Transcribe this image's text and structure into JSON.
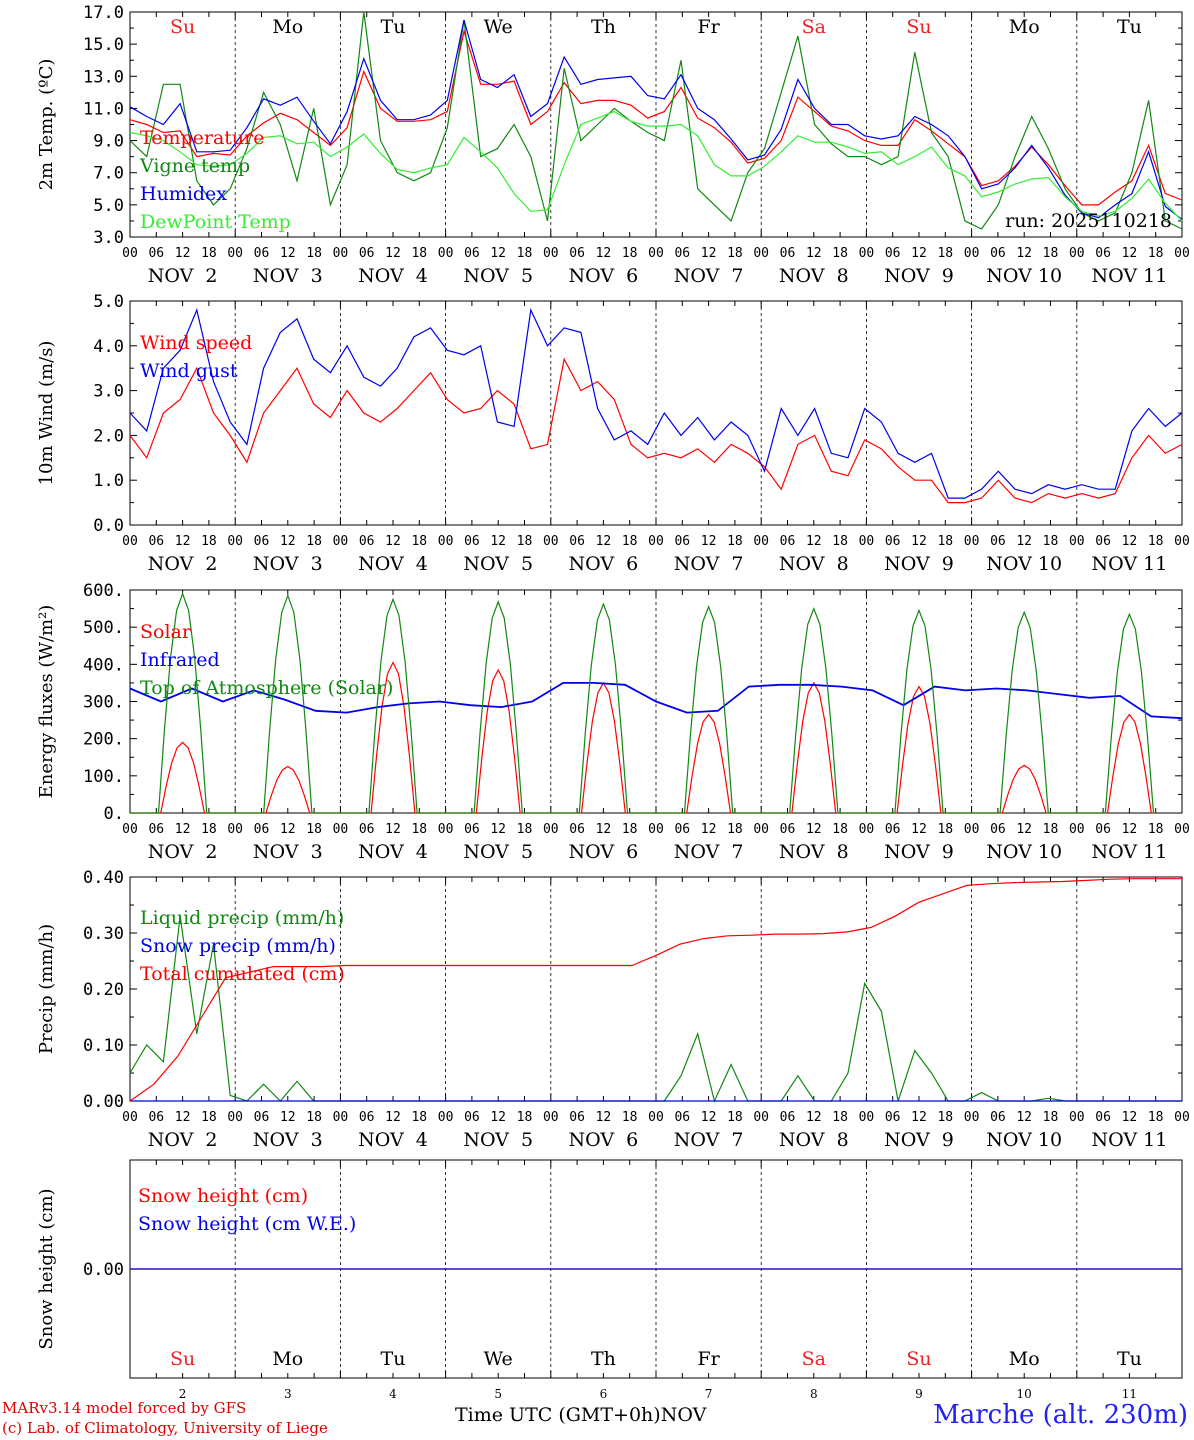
{
  "chart_data": [
    {
      "type": "line",
      "title": "",
      "ylabel": "2m Temp. (ºC)",
      "ylim": [
        3.0,
        17.0
      ],
      "yticks": [
        "3.0",
        "5.0",
        "7.0",
        "9.0",
        "11.0",
        "13.0",
        "15.0",
        "17.0"
      ],
      "day_labels_top": [
        "Su",
        "Mo",
        "Tu",
        "We",
        "Th",
        "Fr",
        "Sa",
        "Su",
        "Mo",
        "Tu"
      ],
      "annotation": "run: 2025110218",
      "legend": [
        "Temperature",
        "Vigne temp",
        "Humidex",
        "DewPoint Temp"
      ],
      "series": [
        {
          "name": "Temperature",
          "color": "#ff0000",
          "values": [
            10.3,
            10.0,
            9.5,
            9.6,
            8.0,
            8.2,
            8.1,
            9.3,
            10.1,
            10.7,
            10.3,
            9.5,
            8.7,
            9.8,
            13.3,
            11.0,
            10.2,
            10.2,
            10.3,
            10.8,
            15.8,
            12.5,
            12.5,
            12.7,
            10.0,
            10.8,
            12.6,
            11.3,
            11.5,
            11.5,
            11.2,
            10.4,
            10.8,
            12.3,
            10.4,
            9.8,
            8.9,
            7.6,
            7.9,
            9.0,
            11.7,
            10.8,
            9.9,
            9.6,
            9.0,
            8.7,
            8.7,
            10.3,
            9.6,
            8.8,
            8.0,
            6.2,
            6.5,
            7.4,
            8.6,
            7.5,
            6.2,
            5.0,
            5.0,
            5.8,
            6.5,
            8.7,
            5.7,
            5.3
          ]
        },
        {
          "name": "Vigne temp",
          "color": "#118811",
          "values": [
            9.0,
            8.0,
            12.5,
            12.5,
            6.5,
            5.0,
            6.0,
            8.5,
            12.0,
            10.0,
            6.5,
            11.0,
            5.0,
            7.5,
            17.0,
            9.0,
            7.0,
            6.5,
            7.0,
            9.8,
            16.5,
            8.0,
            8.5,
            10.0,
            8.0,
            4.0,
            13.5,
            9.0,
            10.0,
            11.0,
            10.2,
            9.5,
            9.0,
            14.0,
            6.0,
            5.0,
            4.0,
            7.0,
            8.5,
            12.0,
            15.5,
            10.0,
            8.8,
            8.0,
            8.0,
            7.5,
            8.0,
            14.5,
            9.5,
            8.0,
            4.0,
            3.5,
            5.0,
            8.0,
            10.5,
            8.5,
            6.0,
            4.5,
            4.0,
            4.5,
            7.0,
            11.5,
            4.0,
            3.5
          ]
        },
        {
          "name": "Humidex",
          "color": "#0000ee",
          "values": [
            11.1,
            10.5,
            10.0,
            11.3,
            8.3,
            8.3,
            8.4,
            9.8,
            11.6,
            11.2,
            11.7,
            10.2,
            8.8,
            10.8,
            14.1,
            11.5,
            10.3,
            10.3,
            10.6,
            11.5,
            16.5,
            12.8,
            12.3,
            13.1,
            10.5,
            11.3,
            14.2,
            12.5,
            12.8,
            12.9,
            13.0,
            11.8,
            11.6,
            13.1,
            11.0,
            10.3,
            9.1,
            7.8,
            8.1,
            9.7,
            12.8,
            11.0,
            10.0,
            10.0,
            9.3,
            9.1,
            9.3,
            10.5,
            10.0,
            9.3,
            8.0,
            6.0,
            6.3,
            7.3,
            8.7,
            7.3,
            5.6,
            4.5,
            4.2,
            5.0,
            5.7,
            8.3,
            4.9,
            4.1
          ]
        },
        {
          "name": "DewPoint Temp",
          "color": "#33ee33",
          "values": [
            9.5,
            9.3,
            9.0,
            8.3,
            7.5,
            7.4,
            7.5,
            8.2,
            9.2,
            9.3,
            8.8,
            8.9,
            8.0,
            8.6,
            9.4,
            8.2,
            7.2,
            7.0,
            7.3,
            7.5,
            9.2,
            8.3,
            7.3,
            5.7,
            4.6,
            4.7,
            7.5,
            10.0,
            10.4,
            10.8,
            10.2,
            9.9,
            9.9,
            10.0,
            9.3,
            7.5,
            6.8,
            6.8,
            7.4,
            8.3,
            9.3,
            8.9,
            8.9,
            8.6,
            8.2,
            8.3,
            7.5,
            8.0,
            8.6,
            7.3,
            6.8,
            5.5,
            5.8,
            6.3,
            6.6,
            6.7,
            5.5,
            4.6,
            4.3,
            4.6,
            5.4,
            6.6,
            5.1,
            4.0
          ]
        }
      ]
    },
    {
      "type": "line",
      "ylabel": "10m Wind (m/s)",
      "ylim": [
        0.0,
        5.0
      ],
      "yticks": [
        "0.0",
        "1.0",
        "2.0",
        "3.0",
        "4.0",
        "5.0"
      ],
      "legend": [
        "Wind speed",
        "Wind gust"
      ],
      "series": [
        {
          "name": "Wind speed",
          "color": "#ff0000",
          "values": [
            2.0,
            1.5,
            2.5,
            2.8,
            3.5,
            2.5,
            2.0,
            1.4,
            2.5,
            3.0,
            3.5,
            2.7,
            2.4,
            3.0,
            2.5,
            2.3,
            2.6,
            3.0,
            3.4,
            2.8,
            2.5,
            2.6,
            3.0,
            2.7,
            1.7,
            1.8,
            3.7,
            3.0,
            3.2,
            2.8,
            1.8,
            1.5,
            1.6,
            1.5,
            1.7,
            1.4,
            1.8,
            1.6,
            1.3,
            0.8,
            1.8,
            2.0,
            1.2,
            1.1,
            1.9,
            1.7,
            1.3,
            1.0,
            1.0,
            0.5,
            0.5,
            0.6,
            1.0,
            0.6,
            0.5,
            0.7,
            0.6,
            0.7,
            0.6,
            0.7,
            1.5,
            2.0,
            1.6,
            1.8
          ]
        },
        {
          "name": "Wind gust",
          "color": "#0000ee",
          "values": [
            2.5,
            2.1,
            3.5,
            3.9,
            4.8,
            3.2,
            2.3,
            1.8,
            3.5,
            4.3,
            4.6,
            3.7,
            3.4,
            4.0,
            3.3,
            3.1,
            3.5,
            4.2,
            4.4,
            3.9,
            3.8,
            4.0,
            2.3,
            2.2,
            4.8,
            4.0,
            4.4,
            4.3,
            2.6,
            1.9,
            2.1,
            1.8,
            2.5,
            2.0,
            2.4,
            1.9,
            2.3,
            2.0,
            1.2,
            2.6,
            2.0,
            2.6,
            1.6,
            1.5,
            2.6,
            2.3,
            1.6,
            1.4,
            1.6,
            0.6,
            0.6,
            0.8,
            1.2,
            0.8,
            0.7,
            0.9,
            0.8,
            0.9,
            0.8,
            0.8,
            2.1,
            2.6,
            2.2,
            2.5
          ]
        }
      ]
    },
    {
      "type": "line",
      "ylabel": "Energy fluxes (W/m²)",
      "ylim": [
        0,
        600
      ],
      "yticks": [
        "0.",
        "100.",
        "200.",
        "300.",
        "400.",
        "500.",
        "600."
      ],
      "legend": [
        "Solar",
        "Infrared",
        "Top of Atmosphere (Solar)"
      ],
      "series": [
        {
          "name": "Solar",
          "color": "#ff0000",
          "peaks": [
            190,
            125,
            405,
            385,
            350,
            265,
            350,
            340,
            128,
            265
          ]
        },
        {
          "name": "Infrared",
          "color": "#0000ee",
          "values": [
            335,
            300,
            335,
            300,
            330,
            305,
            275,
            270,
            285,
            295,
            300,
            290,
            285,
            300,
            350,
            350,
            345,
            300,
            270,
            275,
            340,
            345,
            345,
            340,
            330,
            290,
            340,
            330,
            335,
            330,
            320,
            310,
            315,
            260,
            255
          ]
        },
        {
          "name": "Top of Atmosphere (Solar)",
          "color": "#118811",
          "peaks": [
            590,
            585,
            575,
            568,
            562,
            555,
            550,
            545,
            540,
            535
          ]
        }
      ]
    },
    {
      "type": "line",
      "ylabel": "Precip (mm/h)",
      "ylim": [
        0.0,
        0.4
      ],
      "yticks": [
        "0.00",
        "0.10",
        "0.20",
        "0.30",
        "0.40"
      ],
      "legend": [
        "Liquid precip (mm/h)",
        "Snow precip (mm/h)",
        "Total cumulated (cm)"
      ],
      "series": [
        {
          "name": "Liquid precip (mm/h)",
          "color": "#118811",
          "values": [
            0.05,
            0.1,
            0.07,
            0.33,
            0.12,
            0.28,
            0.01,
            0.0,
            0.03,
            0.0,
            0.035,
            0.0,
            0.0,
            0.0,
            0.0,
            0.0,
            0.0,
            0.0,
            0.0,
            0.0,
            0.0,
            0.0,
            0.0,
            0.0,
            0.0,
            0.0,
            0.0,
            0.0,
            0.0,
            0.0,
            0.0,
            0.0,
            0.0,
            0.045,
            0.12,
            0.0,
            0.065,
            0.0,
            0.0,
            0.0,
            0.045,
            0.0,
            0.0,
            0.05,
            0.21,
            0.16,
            0.0,
            0.09,
            0.05,
            0.0,
            0.0,
            0.015,
            0.0,
            0.0,
            0.0,
            0.005,
            0.0,
            0.0,
            0.0,
            0.0,
            0.0,
            0.0,
            0.0,
            0.0
          ]
        },
        {
          "name": "Snow precip (mm/h)",
          "color": "#0000ee",
          "values": [
            0.0,
            0.0,
            0.0
          ]
        },
        {
          "name": "Total cumulated (cm)",
          "color": "#ff0000",
          "values": [
            0.0,
            0.03,
            0.08,
            0.15,
            0.22,
            0.23,
            0.24,
            0.24,
            0.24,
            0.242,
            0.242,
            0.242,
            0.242,
            0.242,
            0.242,
            0.242,
            0.242,
            0.242,
            0.242,
            0.242,
            0.242,
            0.242,
            0.26,
            0.28,
            0.29,
            0.295,
            0.296,
            0.298,
            0.298,
            0.299,
            0.302,
            0.31,
            0.33,
            0.355,
            0.37,
            0.385,
            0.388,
            0.39,
            0.391,
            0.392,
            0.394,
            0.396,
            0.397,
            0.397,
            0.397
          ]
        }
      ]
    },
    {
      "type": "line",
      "ylabel": "Snow height (cm)",
      "ylim": [
        -1,
        1
      ],
      "yticks": [
        "0.00"
      ],
      "legend": [
        "Snow height (cm)",
        "Snow height (cm W.E.)"
      ],
      "day_labels_bottom": [
        "Su",
        "Mo",
        "Tu",
        "We",
        "Th",
        "Fr",
        "Sa",
        "Su",
        "Mo",
        "Tu"
      ],
      "day_numbers": [
        "2",
        "3",
        "4",
        "5",
        "6",
        "7",
        "8",
        "9",
        "10",
        "11"
      ],
      "series": [
        {
          "name": "Snow height (cm)",
          "color": "#ff0000",
          "values": [
            0.0,
            0.0
          ]
        },
        {
          "name": "Snow height (cm W.E.)",
          "color": "#0000ee",
          "values": [
            0.0,
            0.0
          ]
        }
      ]
    }
  ],
  "axis": {
    "hour_ticks": [
      "00",
      "06",
      "12",
      "18"
    ],
    "end_tick": "00",
    "dates": [
      "NOV  2",
      "NOV  3",
      "NOV  4",
      "NOV  5",
      "NOV  6",
      "NOV  7",
      "NOV  8",
      "NOV  9",
      "NOV 10",
      "NOV 11"
    ],
    "weekend_color": "#ee2222"
  },
  "footer": {
    "model": "MARv3.14 model forced by GFS",
    "credit": "(c) Lab. of Climatology, University of Liege",
    "xlabel": "Time UTC (GMT+0h)",
    "month": "NOV",
    "station": "Marche (alt. 230m)"
  }
}
